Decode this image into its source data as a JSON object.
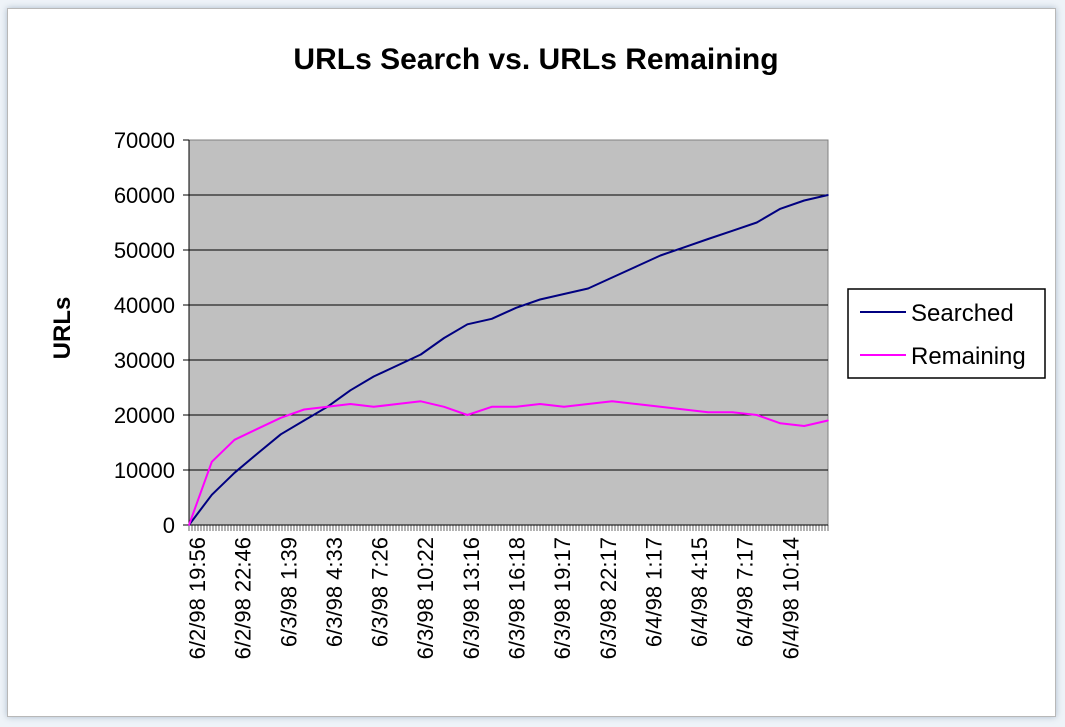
{
  "chart_data": {
    "type": "line",
    "title": "URLs Search vs. URLs Remaining",
    "xlabel": "",
    "ylabel": "URLs",
    "ylim": [
      0,
      70000
    ],
    "yticks": [
      0,
      10000,
      20000,
      30000,
      40000,
      50000,
      60000,
      70000
    ],
    "x_tick_labels": [
      "6/2/98 19:56",
      "6/2/98 22:46",
      "6/3/98 1:39",
      "6/3/98 4:33",
      "6/3/98 7:26",
      "6/3/98 10:22",
      "6/3/98 13:16",
      "6/3/98 16:18",
      "6/3/98 19:17",
      "6/3/98 22:17",
      "6/4/98 1:17",
      "6/4/98 4:15",
      "6/4/98 7:17",
      "6/4/98 10:14"
    ],
    "x": [
      "6/2/98 19:56",
      "6/2/98 21:21",
      "6/2/98 22:46",
      "6/3/98 0:12",
      "6/3/98 1:39",
      "6/3/98 3:06",
      "6/3/98 4:33",
      "6/3/98 5:59",
      "6/3/98 7:26",
      "6/3/98 8:54",
      "6/3/98 10:22",
      "6/3/98 11:49",
      "6/3/98 13:16",
      "6/3/98 14:47",
      "6/3/98 16:18",
      "6/3/98 17:47",
      "6/3/98 19:17",
      "6/3/98 20:47",
      "6/3/98 22:17",
      "6/3/98 23:47",
      "6/4/98 1:17",
      "6/4/98 2:46",
      "6/4/98 4:15",
      "6/4/98 5:46",
      "6/4/98 7:17",
      "6/4/98 8:45",
      "6/4/98 10:14",
      "6/4/98 11:43"
    ],
    "series": [
      {
        "name": "Searched",
        "color": "#000080",
        "values": [
          0,
          5500,
          9500,
          13000,
          16500,
          19000,
          21500,
          24500,
          27000,
          29000,
          31000,
          34000,
          36500,
          37500,
          39500,
          41000,
          42000,
          43000,
          45000,
          47000,
          49000,
          50500,
          52000,
          53500,
          55000,
          57500,
          59000,
          60000
        ]
      },
      {
        "name": "Remaining",
        "color": "#ff00ff",
        "values": [
          0,
          11500,
          15500,
          17500,
          19500,
          21000,
          21500,
          22000,
          21500,
          22000,
          22500,
          21500,
          20000,
          21500,
          21500,
          22000,
          21500,
          22000,
          22500,
          22000,
          21500,
          21000,
          20500,
          20500,
          20000,
          18500,
          18000,
          19000
        ]
      }
    ],
    "grid": true,
    "legend": "right"
  }
}
